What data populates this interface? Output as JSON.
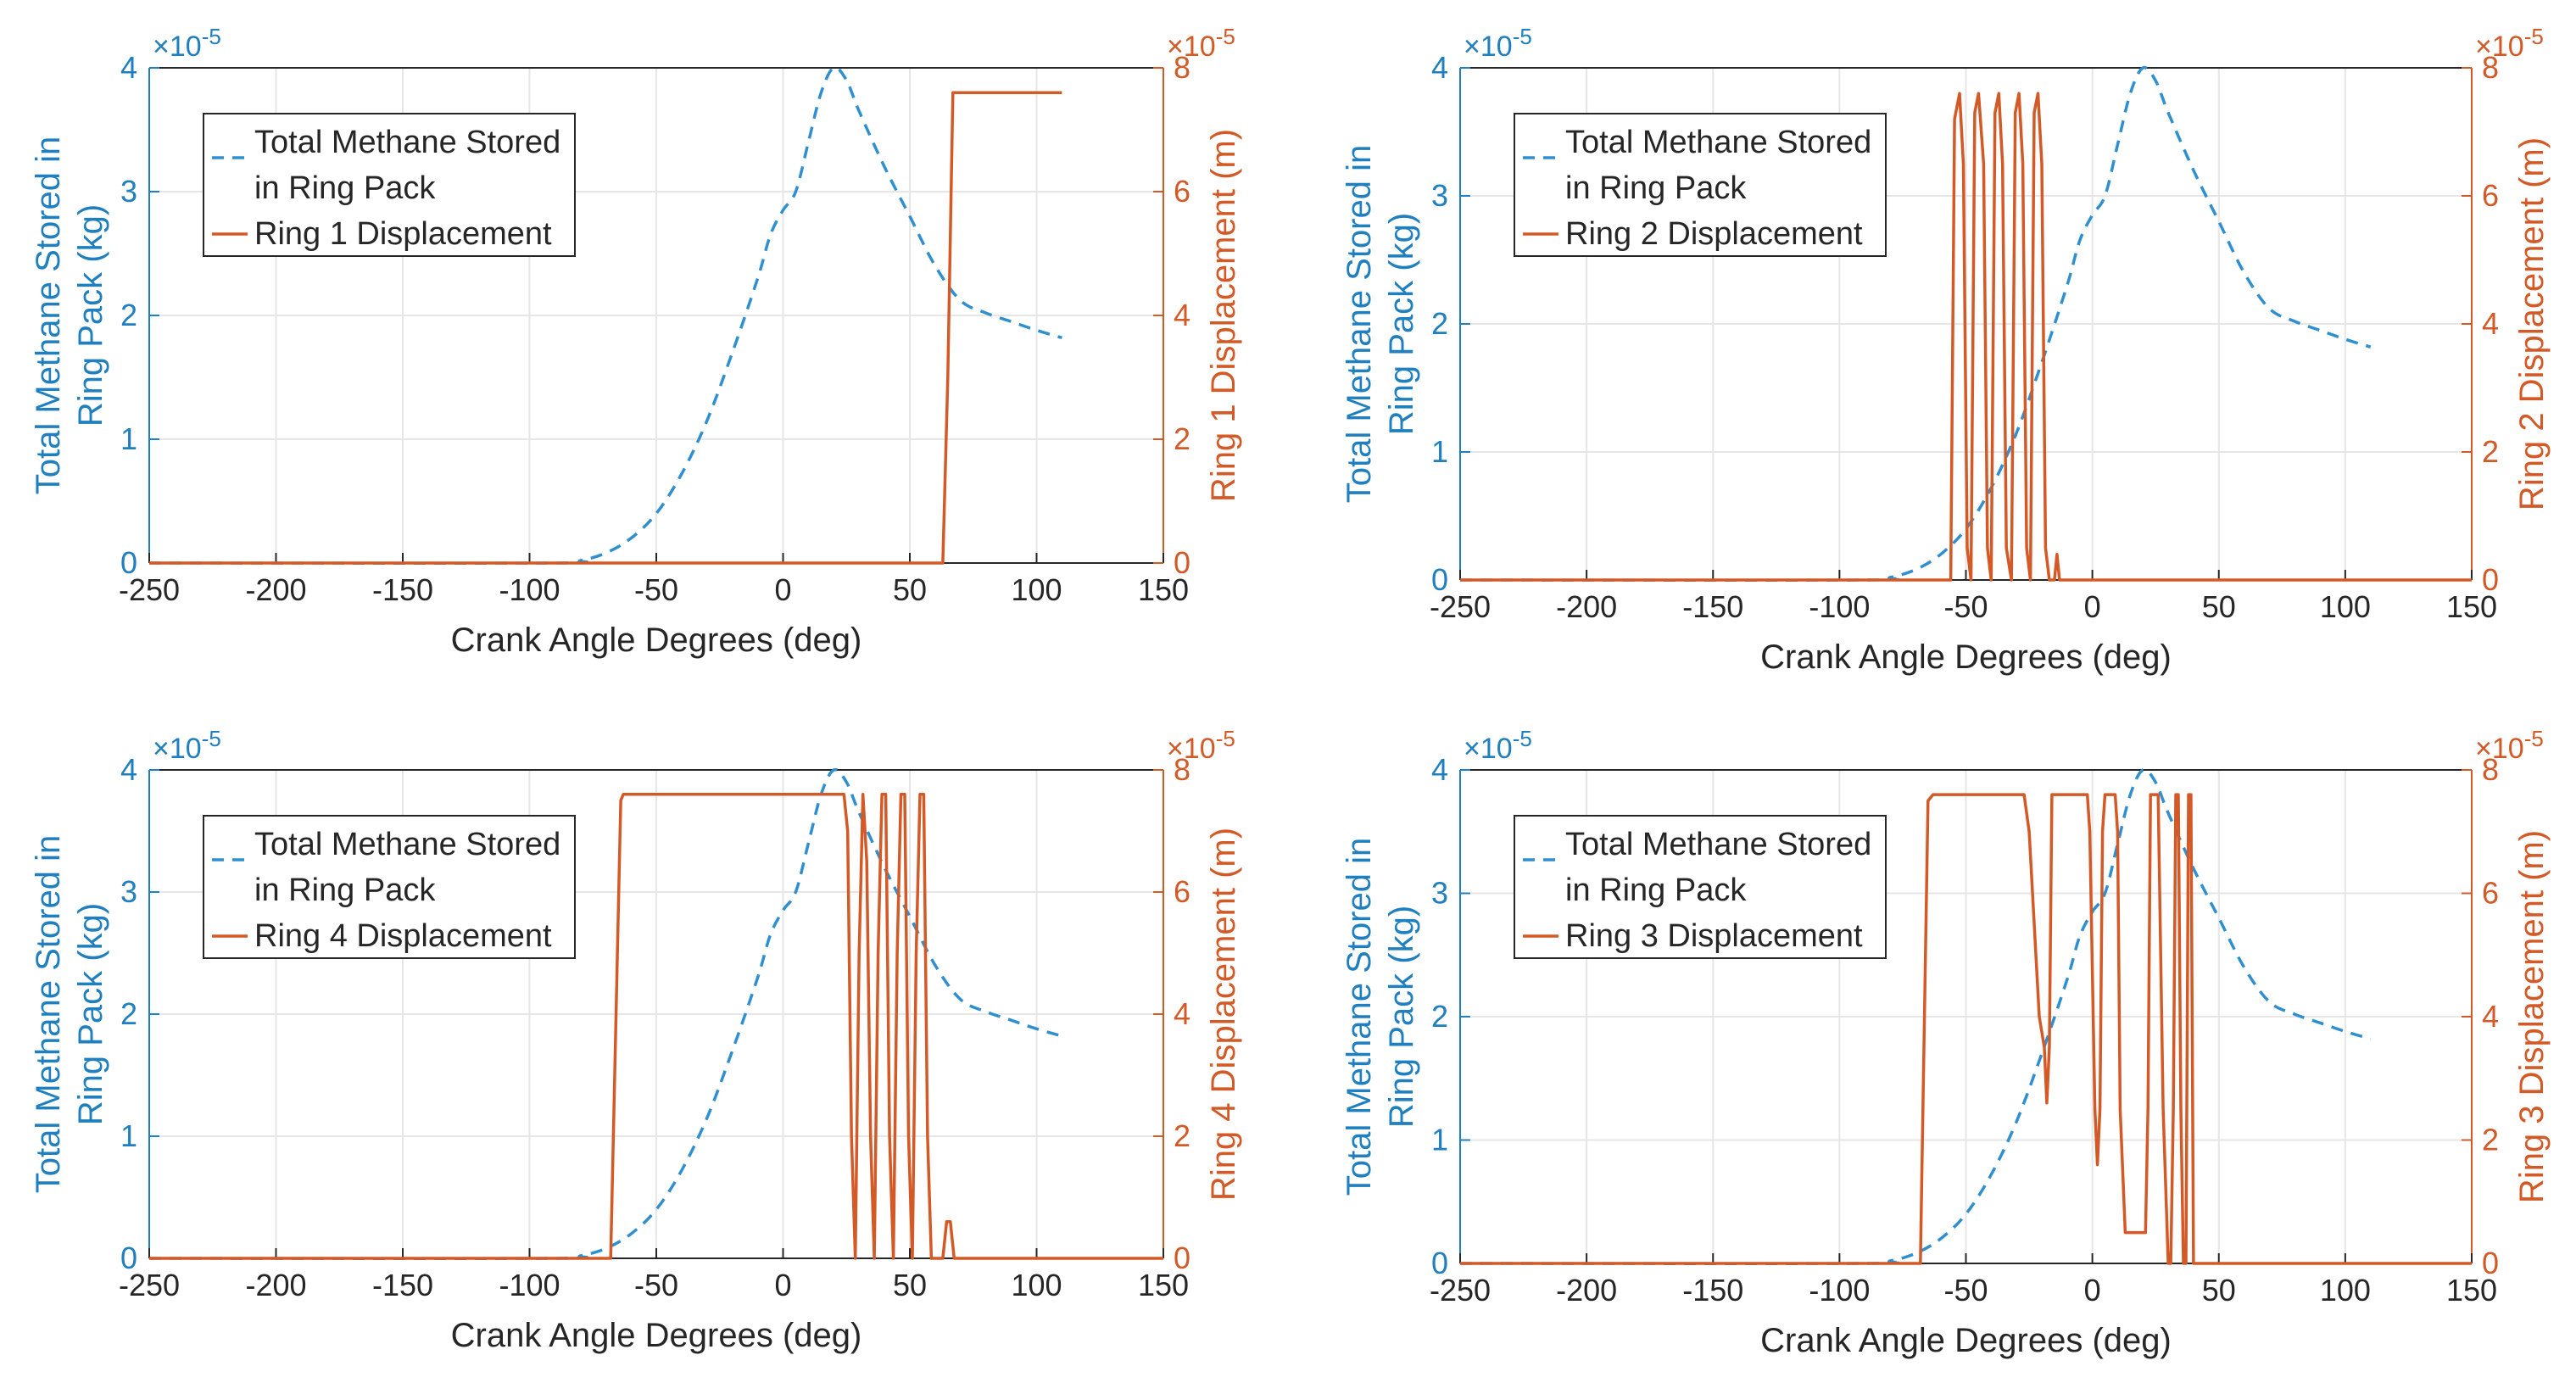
{
  "chart_data": [
    {
      "type": "line",
      "xlabel": "Crank Angle Degrees (deg)",
      "ylabel_left": [
        "Total Methane Stored in",
        "Ring Pack (kg)"
      ],
      "ylabel_right": "Ring 1 Displacement (m)",
      "multiplier_left": "×10",
      "multiplier_left_exp": "-5",
      "multiplier_right": "×10",
      "multiplier_right_exp": "-5",
      "xlim": [
        -250,
        150
      ],
      "xticks": [
        -250,
        -200,
        -150,
        -100,
        -50,
        0,
        50,
        100,
        150
      ],
      "ylim_left": [
        0,
        4
      ],
      "yticks_left": [
        0,
        1,
        2,
        3,
        4
      ],
      "ylim_right": [
        0,
        8
      ],
      "yticks_right": [
        0,
        2,
        4,
        6,
        8
      ],
      "grid": true,
      "legend": [
        {
          "label": [
            "Total Methane Stored",
            "in Ring Pack"
          ],
          "style": "dashed",
          "color": "#2f8fcf"
        },
        {
          "label": [
            "Ring 1 Displacement"
          ],
          "style": "solid",
          "color": "#d35a26"
        }
      ],
      "series": [
        {
          "name": "Total Methane Stored in Ring Pack",
          "axis": "left",
          "x": [
            -250,
            -90,
            -80,
            -70,
            -60,
            -50,
            -40,
            -30,
            -20,
            -10,
            -5,
            0,
            5,
            10,
            15,
            20,
            25,
            30,
            40,
            50,
            60,
            70,
            80,
            90,
            100,
            110
          ],
          "y": [
            0,
            0,
            0.02,
            0.08,
            0.2,
            0.4,
            0.72,
            1.15,
            1.7,
            2.3,
            2.65,
            2.85,
            3.0,
            3.4,
            3.8,
            4.0,
            3.9,
            3.65,
            3.2,
            2.8,
            2.4,
            2.12,
            2.02,
            1.95,
            1.88,
            1.82
          ]
        },
        {
          "name": "Ring 1 Displacement",
          "axis": "right",
          "x": [
            -250,
            63,
            65,
            67,
            110
          ],
          "y": [
            0,
            0,
            3,
            7.6,
            7.6
          ]
        }
      ]
    },
    {
      "type": "line",
      "xlabel": "Crank Angle Degrees (deg)",
      "ylabel_left": [
        "Total Methane Stored in",
        "Ring Pack (kg)"
      ],
      "ylabel_right": "Ring 2 Displacement (m)",
      "multiplier_left": "×10",
      "multiplier_left_exp": "-5",
      "multiplier_right": "×10",
      "multiplier_right_exp": "-5",
      "xlim": [
        -250,
        150
      ],
      "xticks": [
        -250,
        -200,
        -150,
        -100,
        -50,
        0,
        50,
        100,
        150
      ],
      "ylim_left": [
        0,
        4
      ],
      "yticks_left": [
        0,
        1,
        2,
        3,
        4
      ],
      "ylim_right": [
        0,
        8
      ],
      "yticks_right": [
        0,
        2,
        4,
        6,
        8
      ],
      "grid": true,
      "legend": [
        {
          "label": [
            "Total Methane Stored",
            "in Ring Pack"
          ],
          "style": "dashed",
          "color": "#2f8fcf"
        },
        {
          "label": [
            "Ring 2 Displacement"
          ],
          "style": "solid",
          "color": "#d35a26"
        }
      ],
      "series": [
        {
          "name": "Total Methane Stored in Ring Pack",
          "axis": "left",
          "x": [
            -250,
            -90,
            -80,
            -70,
            -60,
            -50,
            -40,
            -30,
            -20,
            -10,
            -5,
            0,
            5,
            10,
            15,
            20,
            25,
            30,
            40,
            50,
            60,
            70,
            80,
            90,
            100,
            110
          ],
          "y": [
            0,
            0,
            0.02,
            0.08,
            0.2,
            0.4,
            0.72,
            1.15,
            1.7,
            2.3,
            2.65,
            2.85,
            3.0,
            3.4,
            3.8,
            4.0,
            3.9,
            3.65,
            3.2,
            2.8,
            2.4,
            2.12,
            2.02,
            1.95,
            1.88,
            1.82
          ]
        },
        {
          "name": "Ring 2 Displacement",
          "axis": "right",
          "x": [
            -250,
            -56,
            -54.5,
            -52.5,
            -51,
            -49.5,
            -48,
            -46.5,
            -45,
            -43,
            -41.5,
            -40,
            -38.5,
            -37,
            -35.5,
            -34,
            -32,
            -30.5,
            -29,
            -27.5,
            -26,
            -24.5,
            -23,
            -21.5,
            -20,
            -18.5,
            -17,
            -15,
            -14,
            -13,
            150
          ],
          "y": [
            0,
            0,
            7.2,
            7.6,
            6.5,
            0.5,
            0,
            7.3,
            7.6,
            6.5,
            0.5,
            0,
            7.3,
            7.6,
            6.5,
            0.5,
            0,
            7.3,
            7.6,
            6.5,
            0.5,
            0,
            7.3,
            7.6,
            6.5,
            0.5,
            0,
            0,
            0.4,
            0,
            0
          ]
        }
      ]
    },
    {
      "type": "line",
      "xlabel": "Crank Angle Degrees (deg)",
      "ylabel_left": [
        "Total Methane Stored in",
        "Ring Pack (kg)"
      ],
      "ylabel_right": "Ring 4 Displacement (m)",
      "multiplier_left": "×10",
      "multiplier_left_exp": "-5",
      "multiplier_right": "×10",
      "multiplier_right_exp": "-5",
      "xlim": [
        -250,
        150
      ],
      "xticks": [
        -250,
        -200,
        -150,
        -100,
        -50,
        0,
        50,
        100,
        150
      ],
      "ylim_left": [
        0,
        4
      ],
      "yticks_left": [
        0,
        1,
        2,
        3,
        4
      ],
      "ylim_right": [
        0,
        8
      ],
      "yticks_right": [
        0,
        2,
        4,
        6,
        8
      ],
      "grid": true,
      "legend": [
        {
          "label": [
            "Total Methane Stored",
            "in Ring Pack"
          ],
          "style": "dashed",
          "color": "#2f8fcf"
        },
        {
          "label": [
            "Ring 4 Displacement"
          ],
          "style": "solid",
          "color": "#d35a26"
        }
      ],
      "series": [
        {
          "name": "Total Methane Stored in Ring Pack",
          "axis": "left",
          "x": [
            -250,
            -90,
            -80,
            -70,
            -60,
            -50,
            -40,
            -30,
            -20,
            -10,
            -5,
            0,
            5,
            10,
            15,
            20,
            25,
            30,
            40,
            50,
            60,
            70,
            80,
            90,
            100,
            110
          ],
          "y": [
            0,
            0,
            0.02,
            0.08,
            0.2,
            0.4,
            0.72,
            1.15,
            1.7,
            2.3,
            2.65,
            2.85,
            3.0,
            3.4,
            3.8,
            4.0,
            3.9,
            3.65,
            3.2,
            2.8,
            2.4,
            2.12,
            2.02,
            1.95,
            1.88,
            1.82
          ]
        },
        {
          "name": "Ring 4 Displacement",
          "axis": "right",
          "x": [
            -250,
            -68,
            -64,
            -63,
            24,
            25.5,
            27,
            28.5,
            30,
            31.5,
            33,
            34.5,
            36,
            37.5,
            39,
            40.5,
            42,
            43.5,
            45,
            46.5,
            48,
            49.5,
            51,
            52.5,
            54,
            55.5,
            57,
            58.5,
            60,
            63,
            64.5,
            66,
            67.5,
            150
          ],
          "y": [
            0,
            0,
            7.5,
            7.6,
            7.6,
            7.0,
            2,
            0,
            5,
            7.6,
            6.5,
            2,
            0,
            5,
            7.6,
            7.6,
            2,
            0,
            5,
            7.6,
            7.6,
            2,
            0,
            5,
            7.6,
            7.6,
            2,
            0,
            0,
            0,
            0.6,
            0.6,
            0,
            0
          ]
        }
      ]
    },
    {
      "type": "line",
      "xlabel": "Crank Angle Degrees (deg)",
      "ylabel_left": [
        "Total Methane Stored in",
        "Ring Pack (kg)"
      ],
      "ylabel_right": "Ring 3 Displacement (m)",
      "multiplier_left": "×10",
      "multiplier_left_exp": "-5",
      "multiplier_right": "×10",
      "multiplier_right_exp": "-5",
      "xlim": [
        -250,
        150
      ],
      "xticks": [
        -250,
        -200,
        -150,
        -100,
        -50,
        0,
        50,
        100,
        150
      ],
      "ylim_left": [
        0,
        4
      ],
      "yticks_left": [
        0,
        1,
        2,
        3,
        4
      ],
      "ylim_right": [
        0,
        8
      ],
      "yticks_right": [
        0,
        2,
        4,
        6,
        8
      ],
      "grid": true,
      "legend": [
        {
          "label": [
            "Total Methane Stored",
            "in Ring Pack"
          ],
          "style": "dashed",
          "color": "#2f8fcf"
        },
        {
          "label": [
            "Ring 3 Displacement"
          ],
          "style": "solid",
          "color": "#d35a26"
        }
      ],
      "series": [
        {
          "name": "Total Methane Stored in Ring Pack",
          "axis": "left",
          "x": [
            -250,
            -90,
            -80,
            -70,
            -60,
            -50,
            -40,
            -30,
            -20,
            -10,
            -5,
            0,
            5,
            10,
            15,
            20,
            25,
            30,
            40,
            50,
            60,
            70,
            80,
            90,
            100,
            110
          ],
          "y": [
            0,
            0,
            0.02,
            0.08,
            0.2,
            0.4,
            0.72,
            1.15,
            1.7,
            2.3,
            2.65,
            2.85,
            3.0,
            3.4,
            3.8,
            4.0,
            3.9,
            3.65,
            3.2,
            2.8,
            2.4,
            2.12,
            2.02,
            1.95,
            1.88,
            1.82
          ]
        },
        {
          "name": "Ring 3 Displacement",
          "axis": "right",
          "x": [
            -250,
            -68,
            -65,
            -63,
            -27,
            -25,
            -21,
            -19,
            -18,
            -17,
            -16,
            -15,
            -2,
            -1,
            1,
            2,
            3,
            4,
            5,
            5.5,
            6,
            7,
            9,
            10,
            11,
            13,
            14,
            15,
            16,
            21,
            22,
            23,
            24,
            26,
            28,
            30,
            31,
            32,
            33,
            34,
            35,
            36,
            37,
            38,
            39,
            40,
            150
          ],
          "y": [
            0,
            0,
            7.5,
            7.6,
            7.6,
            7.0,
            4.0,
            3.5,
            2.6,
            3.5,
            7.6,
            7.6,
            7.6,
            7.0,
            2.5,
            1.6,
            2.5,
            7.0,
            7.6,
            7.6,
            7.6,
            7.6,
            7.6,
            7.0,
            2.5,
            0.5,
            0.5,
            0.5,
            0.5,
            0.5,
            2.5,
            7.6,
            7.6,
            7.6,
            2.5,
            0,
            0,
            2.5,
            7.6,
            7.6,
            2.5,
            0,
            0,
            7.6,
            7.6,
            0,
            0
          ]
        }
      ]
    }
  ]
}
